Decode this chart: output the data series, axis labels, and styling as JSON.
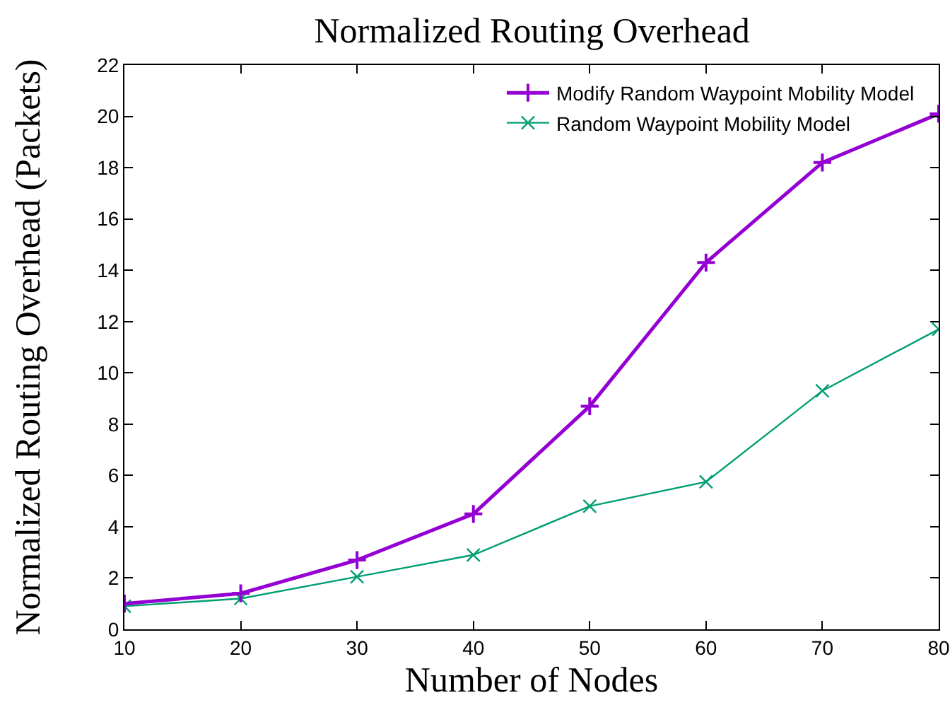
{
  "chart_data": {
    "type": "line",
    "title": "Normalized Routing Overhead",
    "xlabel": "Number of Nodes",
    "ylabel": "Normalized Routing Overhead (Packets)",
    "x": [
      10,
      20,
      30,
      40,
      50,
      60,
      70,
      80
    ],
    "series": [
      {
        "name": "Modify Random Waypoint Mobility Model",
        "color": "#9400d3",
        "marker": "cross",
        "values": [
          1.0,
          1.4,
          2.7,
          4.5,
          8.7,
          14.3,
          18.2,
          20.1
        ]
      },
      {
        "name": "Random Waypoint Mobility Model",
        "color": "#009e73",
        "marker": "x",
        "values": [
          0.9,
          1.2,
          2.05,
          2.9,
          4.8,
          5.75,
          9.3,
          11.7
        ]
      }
    ],
    "xlim": [
      10,
      80
    ],
    "xticks": [
      10,
      20,
      30,
      40,
      50,
      60,
      70,
      80
    ],
    "ylim": [
      0,
      22
    ],
    "yticks": [
      0,
      2,
      4,
      6,
      8,
      10,
      12,
      14,
      16,
      18,
      20,
      22
    ],
    "grid": false,
    "legend": "top right",
    "line_style": "solid"
  }
}
